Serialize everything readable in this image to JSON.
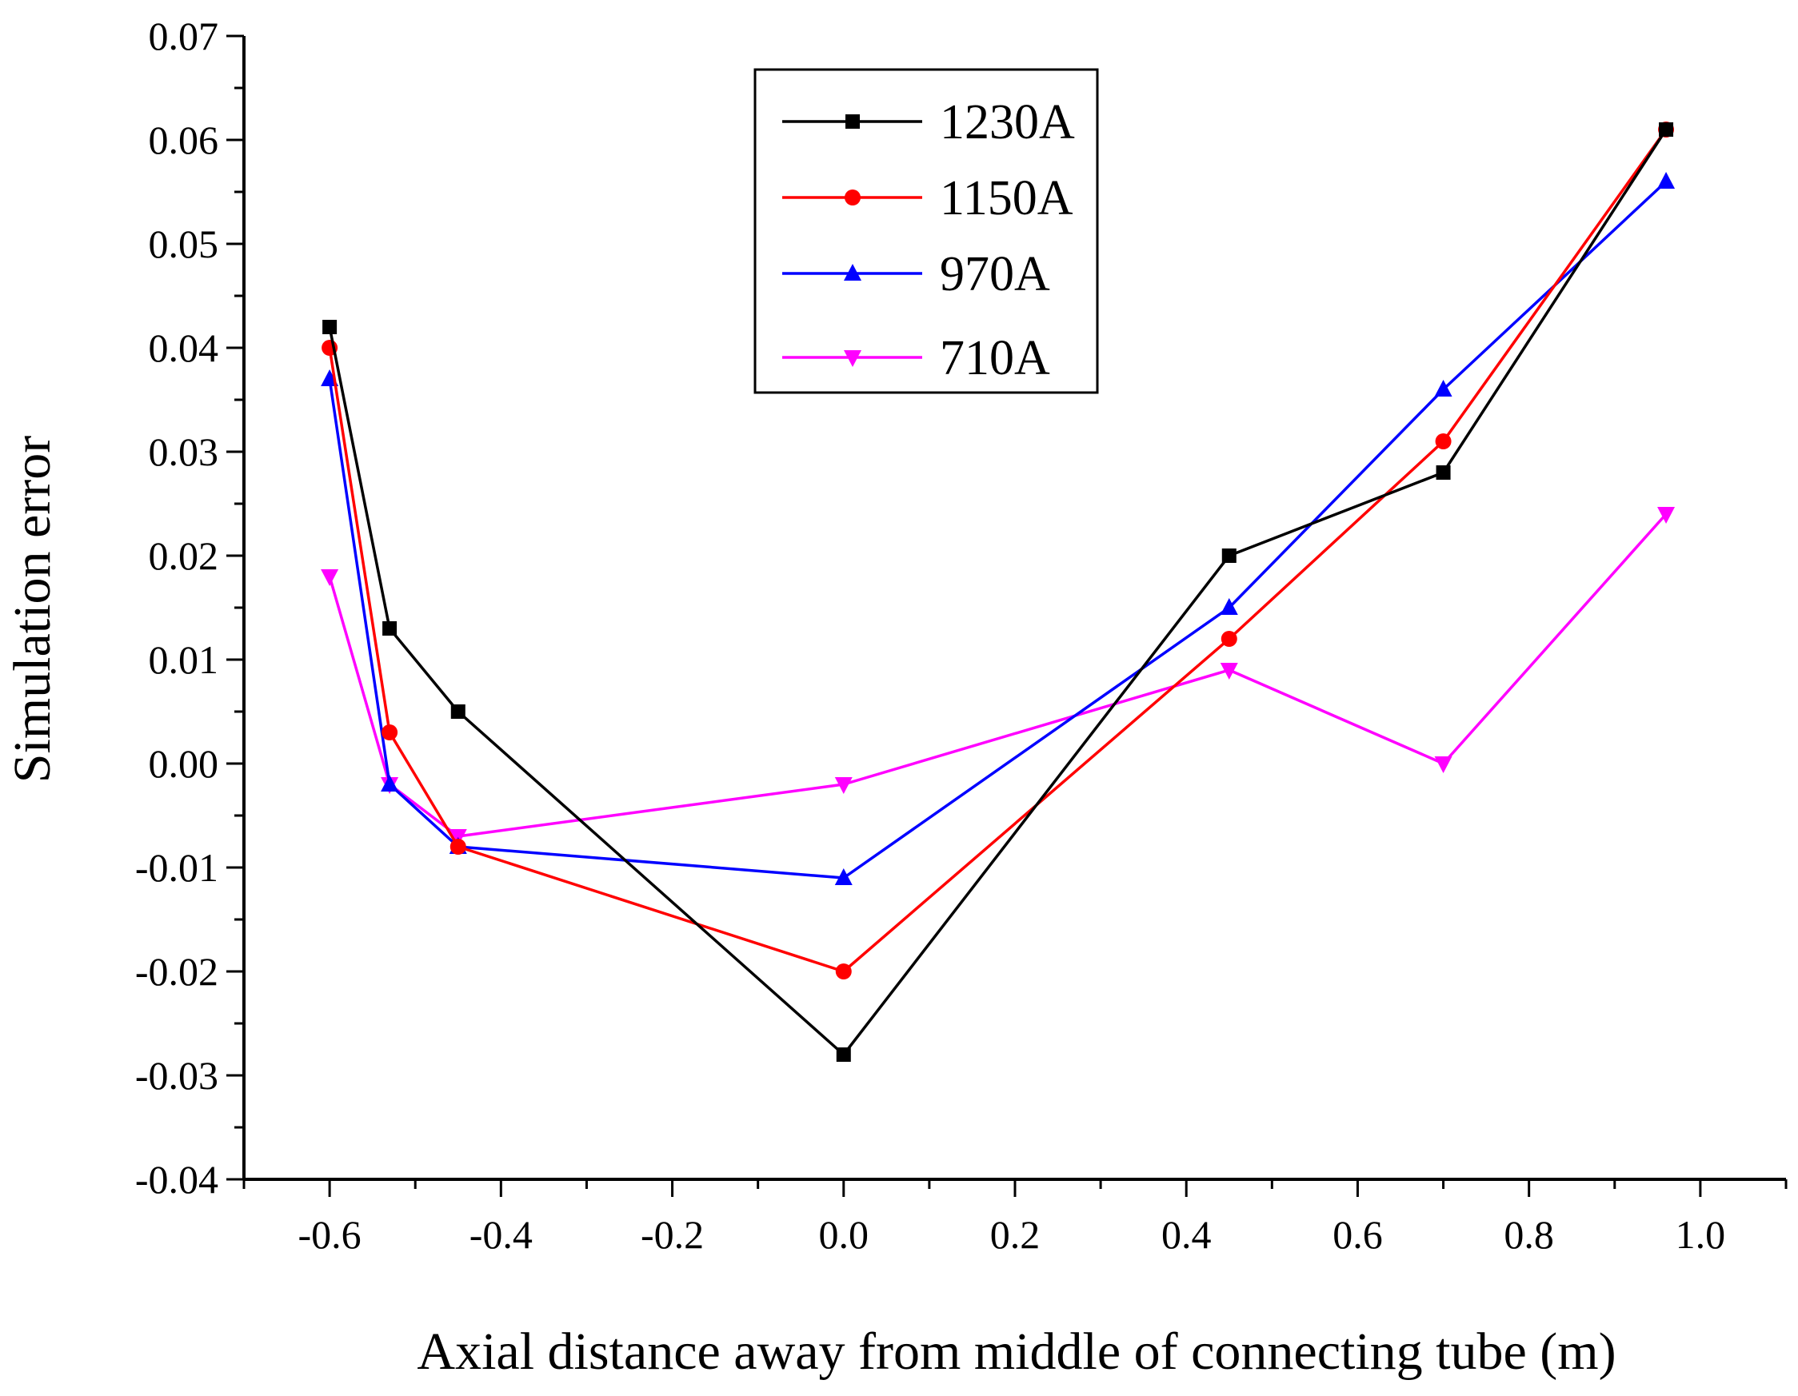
{
  "chart_data": {
    "type": "line",
    "title": "",
    "xlabel": "Axial distance away from middle of connecting tube (m)",
    "ylabel": "Simulation error",
    "xlim": [
      -0.7,
      1.1
    ],
    "ylim": [
      -0.04,
      0.07
    ],
    "x_ticks": [
      -0.6,
      -0.4,
      -0.2,
      0.0,
      0.2,
      0.4,
      0.6,
      0.8,
      1.0
    ],
    "x_tick_labels": [
      "-0.6",
      "-0.4",
      "-0.2",
      "0.0",
      "0.2",
      "0.4",
      "0.6",
      "0.8",
      "1.0"
    ],
    "y_ticks": [
      -0.04,
      -0.03,
      -0.02,
      -0.01,
      0.0,
      0.01,
      0.02,
      0.03,
      0.04,
      0.05,
      0.06,
      0.07
    ],
    "y_tick_labels": [
      "-0.04",
      "-0.03",
      "-0.02",
      "-0.01",
      "0.00",
      "0.01",
      "0.02",
      "0.03",
      "0.04",
      "0.05",
      "0.06",
      "0.07"
    ],
    "grid": false,
    "legend_position": "top-center",
    "x": [
      -0.6,
      -0.53,
      -0.45,
      0.0,
      0.45,
      0.7,
      0.96
    ],
    "series": [
      {
        "name": "1230A",
        "color": "#000000",
        "marker": "square",
        "values": [
          0.042,
          0.013,
          0.005,
          -0.028,
          0.02,
          0.028,
          0.061
        ]
      },
      {
        "name": "1150A",
        "color": "#ff0000",
        "marker": "circle",
        "values": [
          0.04,
          0.003,
          -0.008,
          -0.02,
          0.012,
          0.031,
          0.061
        ]
      },
      {
        "name": "970A",
        "color": "#0000ff",
        "marker": "triangle-up",
        "values": [
          0.037,
          -0.002,
          -0.008,
          -0.011,
          0.015,
          0.036,
          0.056
        ]
      },
      {
        "name": "710A",
        "color": "#ff00ff",
        "marker": "triangle-down",
        "values": [
          0.018,
          -0.002,
          -0.007,
          -0.002,
          0.009,
          0.0,
          0.024
        ]
      }
    ]
  }
}
